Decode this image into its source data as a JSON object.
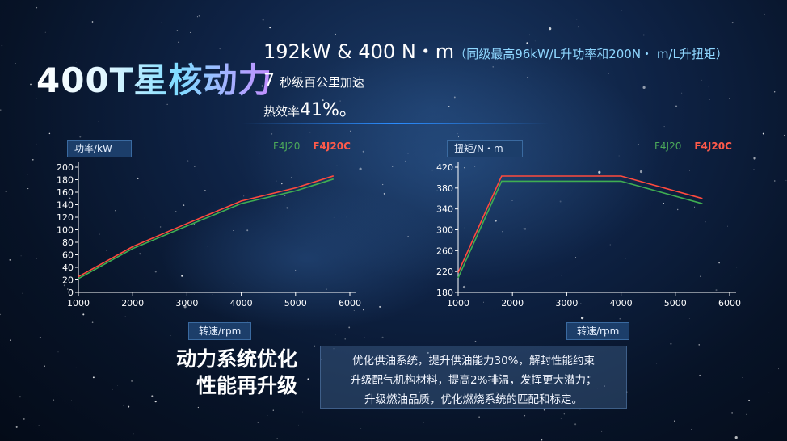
{
  "title": "400T星核动力",
  "specs": {
    "power_torque": "192kW & 400 N・m",
    "power_torque_note": "（同级最高96kW/L升功率和200N・ m/L升扭矩）",
    "acceleration_value": "7",
    "acceleration_label": "秒级百公里加速",
    "efficiency_label": "热效率",
    "efficiency_value": "41%。"
  },
  "charts": {
    "power": {
      "ylabel": "功率/kW",
      "xlabel": "转速/rpm",
      "legend_f4j20": "F4J20",
      "legend_f4j20c": "F4J20C"
    },
    "torque": {
      "ylabel": "扭矩/N・m",
      "xlabel": "转速/rpm",
      "legend_f4j20": "F4J20",
      "legend_f4j20c": "F4J20C"
    }
  },
  "chart_data": [
    {
      "type": "line",
      "ylabel": "功率/kW",
      "xlabel": "转速/rpm",
      "xlim": [
        1000,
        6000
      ],
      "ylim": [
        0,
        200
      ],
      "xticks": [
        1000,
        2000,
        3000,
        4000,
        5000,
        6000
      ],
      "yticks": [
        0,
        20,
        40,
        60,
        80,
        100,
        120,
        140,
        160,
        180,
        200
      ],
      "series": [
        {
          "name": "F4J20",
          "color": "#3fae52",
          "x": [
            1000,
            2000,
            3000,
            4000,
            5000,
            5700
          ],
          "y": [
            22,
            70,
            106,
            142,
            162,
            181
          ]
        },
        {
          "name": "F4J20C",
          "color": "#ff4a3d",
          "x": [
            1000,
            2000,
            3000,
            4000,
            5000,
            5700
          ],
          "y": [
            25,
            73,
            110,
            146,
            167,
            186
          ]
        }
      ]
    },
    {
      "type": "line",
      "ylabel": "扭矩/N・m",
      "xlabel": "转速/rpm",
      "xlim": [
        1000,
        6000
      ],
      "ylim": [
        180,
        420
      ],
      "xticks": [
        1000,
        2000,
        3000,
        4000,
        5000,
        6000
      ],
      "yticks": [
        180,
        220,
        260,
        300,
        340,
        380,
        420
      ],
      "series": [
        {
          "name": "F4J20",
          "color": "#3fae52",
          "x": [
            1000,
            1800,
            4000,
            5500
          ],
          "y": [
            208,
            393,
            393,
            350
          ]
        },
        {
          "name": "F4J20C",
          "color": "#ff4a3d",
          "x": [
            1000,
            1800,
            4000,
            5500
          ],
          "y": [
            218,
            403,
            403,
            360
          ]
        }
      ]
    }
  ],
  "bottom": {
    "title_line1": "动力系统优化",
    "title_line2": "性能再升级",
    "desc_line1": "优化供油系统，提升供油能力30%，解封性能约束",
    "desc_line2": "升级配气机构材料，提高2%排温，发挥更大潜力；",
    "desc_line3": "升级燃油品质，优化燃烧系统的匹配和标定。"
  }
}
